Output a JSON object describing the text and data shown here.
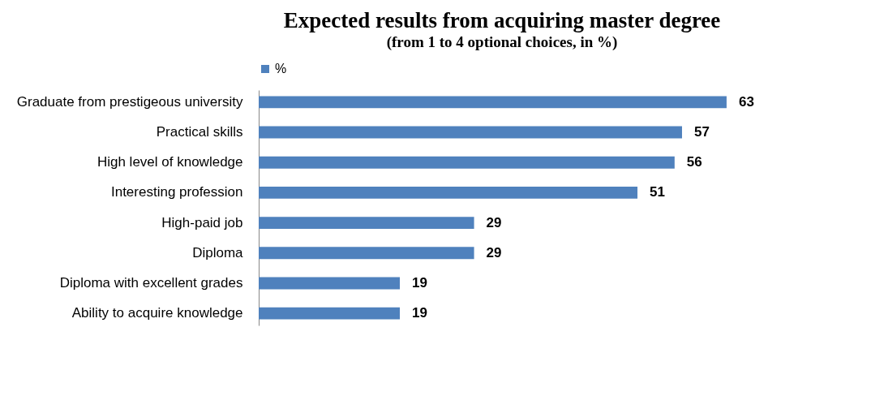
{
  "chart_data": {
    "type": "bar",
    "orientation": "horizontal",
    "title": "Expected results from acquiring master degree",
    "subtitle": "(from 1 to 4 optional choices, in %)",
    "categories": [
      "Graduate from prestigeous university",
      "Practical skills",
      "High level of knowledge",
      "Interesting profession",
      "High-paid job",
      "Diploma",
      "Diploma with excellent grades",
      "Ability to acquire knowledge"
    ],
    "series": [
      {
        "name": "%",
        "color": "#4f81bd",
        "values": [
          63,
          57,
          56,
          51,
          29,
          29,
          19,
          19
        ]
      }
    ],
    "data_labels": true,
    "legend": "top",
    "grid": false,
    "tick_labels": "y"
  }
}
